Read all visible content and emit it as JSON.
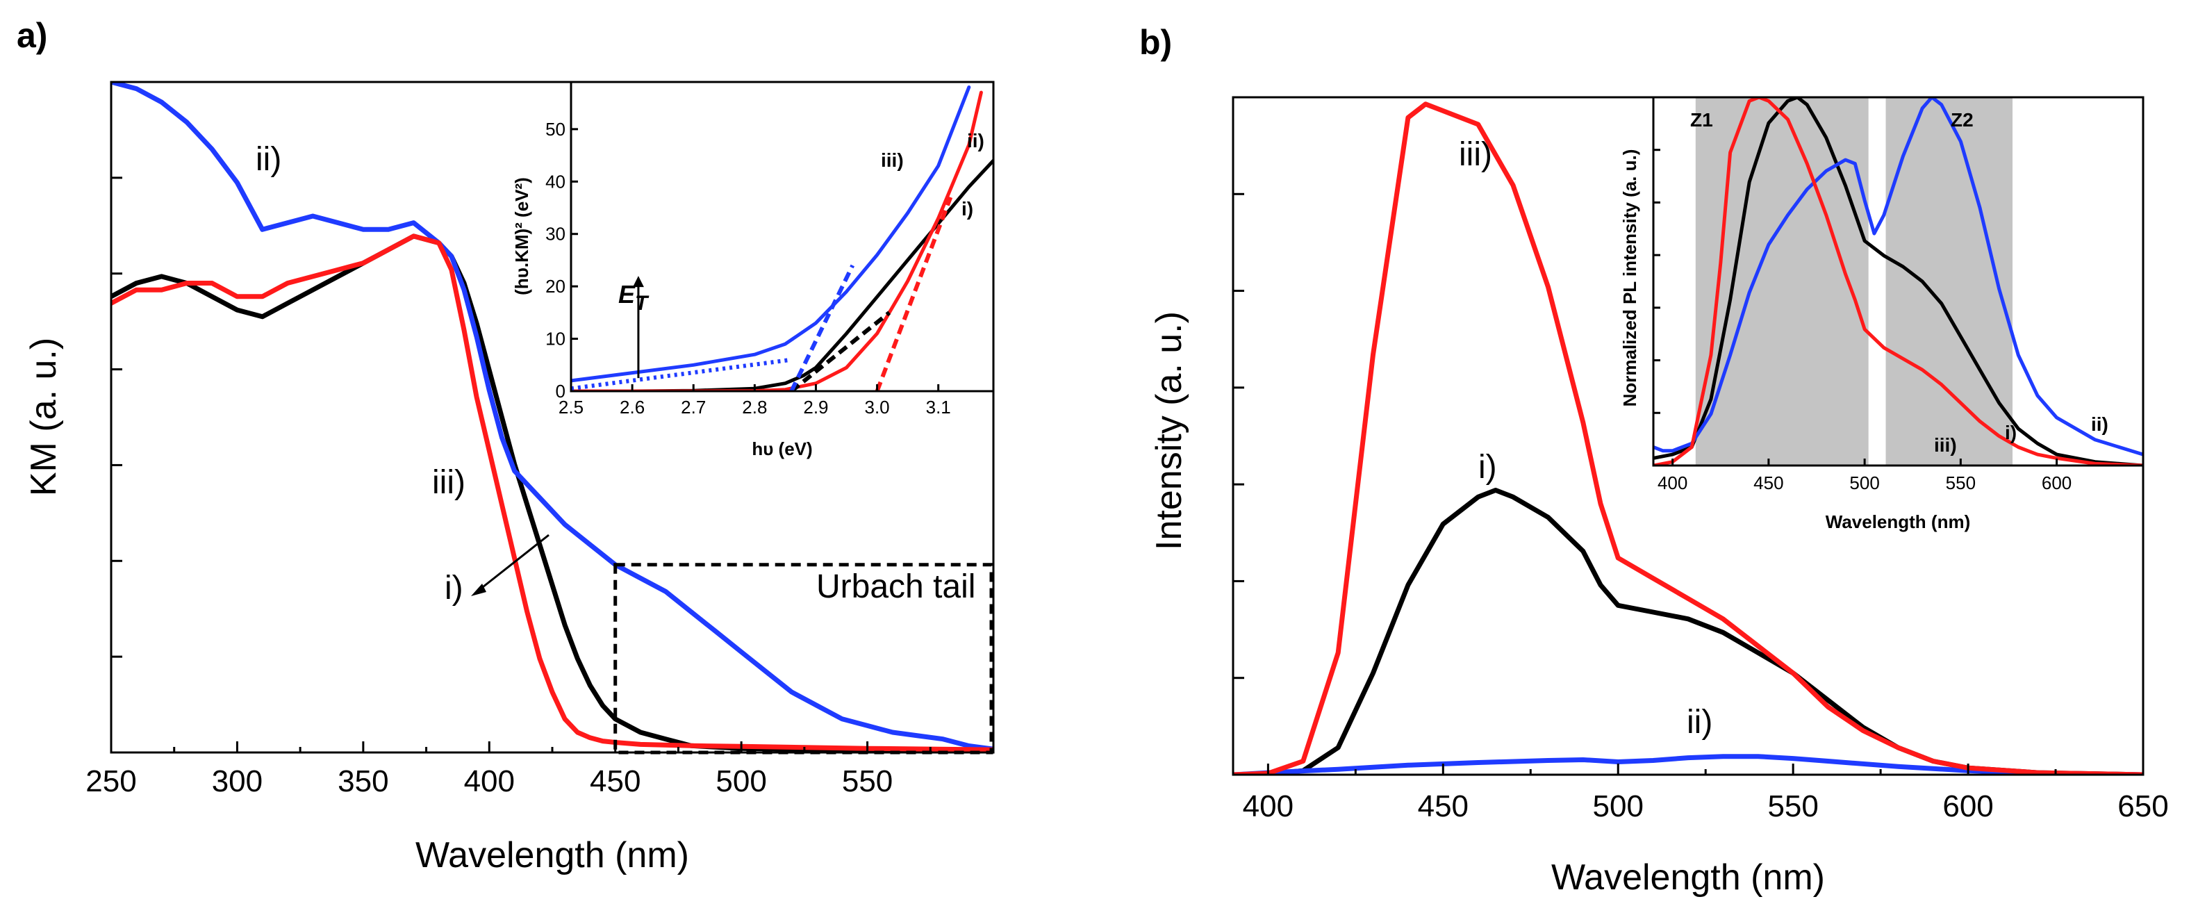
{
  "figure": {
    "panel_a_label": "a)",
    "panel_b_label": "b)",
    "colors": {
      "i": "#000000",
      "ii": "#1f3bff",
      "iii": "#ff1a1a",
      "shade": "#c4c4c4"
    }
  },
  "chart_data": [
    {
      "id": "panel-a-main",
      "type": "line",
      "title": "",
      "xlabel": "Wavelength (nm)",
      "ylabel": "KM (a. u.)",
      "xlim": [
        250,
        600
      ],
      "ylim": [
        0,
        1.0
      ],
      "x_ticks": [
        250,
        300,
        350,
        400,
        450,
        500,
        550
      ],
      "y_tick_labels": "none",
      "series": [
        {
          "name": "i)",
          "color": "#000000",
          "x": [
            250,
            260,
            270,
            280,
            290,
            300,
            310,
            320,
            330,
            340,
            350,
            360,
            370,
            380,
            385,
            390,
            395,
            400,
            405,
            410,
            415,
            420,
            425,
            430,
            435,
            440,
            445,
            450,
            460,
            470,
            480,
            490,
            500,
            550,
            600
          ],
          "y": [
            0.68,
            0.7,
            0.71,
            0.7,
            0.68,
            0.66,
            0.65,
            0.67,
            0.69,
            0.71,
            0.73,
            0.75,
            0.77,
            0.76,
            0.74,
            0.7,
            0.64,
            0.57,
            0.5,
            0.43,
            0.37,
            0.31,
            0.25,
            0.19,
            0.14,
            0.1,
            0.07,
            0.05,
            0.03,
            0.02,
            0.01,
            0.008,
            0.006,
            0.003,
            0.002
          ]
        },
        {
          "name": "ii)",
          "color": "#1f3bff",
          "x": [
            250,
            260,
            270,
            280,
            290,
            300,
            310,
            320,
            330,
            340,
            350,
            360,
            370,
            380,
            385,
            390,
            395,
            400,
            405,
            410,
            420,
            430,
            440,
            450,
            460,
            470,
            480,
            490,
            500,
            510,
            520,
            530,
            540,
            550,
            560,
            570,
            580,
            590,
            600
          ],
          "y": [
            1.0,
            0.99,
            0.97,
            0.94,
            0.9,
            0.85,
            0.78,
            0.79,
            0.8,
            0.79,
            0.78,
            0.78,
            0.79,
            0.76,
            0.74,
            0.69,
            0.62,
            0.54,
            0.47,
            0.42,
            0.38,
            0.34,
            0.31,
            0.28,
            0.26,
            0.24,
            0.21,
            0.18,
            0.15,
            0.12,
            0.09,
            0.07,
            0.05,
            0.04,
            0.03,
            0.025,
            0.02,
            0.01,
            0.005
          ]
        },
        {
          "name": "iii)",
          "color": "#ff1a1a",
          "x": [
            250,
            260,
            270,
            280,
            290,
            300,
            310,
            320,
            330,
            340,
            350,
            360,
            370,
            380,
            385,
            390,
            395,
            400,
            405,
            410,
            415,
            420,
            425,
            430,
            435,
            440,
            445,
            450,
            460,
            480,
            500,
            550,
            600
          ],
          "y": [
            0.67,
            0.69,
            0.69,
            0.7,
            0.7,
            0.68,
            0.68,
            0.7,
            0.71,
            0.72,
            0.73,
            0.75,
            0.77,
            0.76,
            0.72,
            0.63,
            0.53,
            0.45,
            0.37,
            0.29,
            0.21,
            0.14,
            0.09,
            0.05,
            0.03,
            0.022,
            0.017,
            0.015,
            0.012,
            0.01,
            0.009,
            0.006,
            0.004
          ]
        }
      ],
      "curve_labels": {
        "i": "i)",
        "ii": "ii)",
        "iii": "iii)"
      },
      "annotations": {
        "urbach": "Urbach tail",
        "urbach_box_x": [
          450,
          600
        ],
        "urbach_box_y": [
          0,
          0.28
        ]
      }
    },
    {
      "id": "panel-a-inset",
      "type": "line",
      "title": "",
      "xlabel": "hυ (eV)",
      "ylabel": "(hυ.KM)² (eV²)",
      "xlim": [
        2.5,
        3.19
      ],
      "ylim": [
        0,
        59
      ],
      "x_ticks": [
        2.5,
        2.6,
        2.7,
        2.8,
        2.9,
        3.0,
        3.1
      ],
      "y_ticks": [
        0,
        10,
        20,
        30,
        40,
        50
      ],
      "series": [
        {
          "name": "i)",
          "color": "#000000",
          "x": [
            2.5,
            2.6,
            2.7,
            2.8,
            2.85,
            2.88,
            2.9,
            2.95,
            3.0,
            3.05,
            3.1,
            3.15,
            3.19
          ],
          "y": [
            0,
            0,
            0.1,
            0.5,
            1.5,
            3.0,
            4.5,
            11,
            18,
            25,
            32,
            39,
            44
          ]
        },
        {
          "name": "ii)",
          "color": "#1f3bff",
          "x": [
            2.5,
            2.6,
            2.7,
            2.8,
            2.85,
            2.9,
            2.95,
            3.0,
            3.05,
            3.1,
            3.15
          ],
          "y": [
            2,
            3.5,
            5,
            7,
            9,
            13,
            19,
            26,
            34,
            43,
            58
          ]
        },
        {
          "name": "iii)",
          "color": "#ff1a1a",
          "x": [
            2.5,
            2.7,
            2.8,
            2.85,
            2.9,
            2.95,
            3.0,
            3.05,
            3.1,
            3.15,
            3.17
          ],
          "y": [
            0,
            0,
            0.05,
            0.3,
            1.5,
            4.5,
            11,
            21,
            33,
            47,
            57
          ]
        }
      ],
      "fit_lines": [
        {
          "name": "i)",
          "color": "#000000",
          "x": [
            2.86,
            3.02
          ],
          "y": [
            0,
            15
          ]
        },
        {
          "name": "ii)",
          "color": "#1f3bff",
          "x": [
            2.86,
            2.96
          ],
          "y": [
            0,
            24
          ]
        },
        {
          "name": "ii) tail",
          "color": "#1f3bff",
          "x": [
            2.5,
            2.86
          ],
          "y": [
            0.5,
            6
          ]
        },
        {
          "name": "iii)",
          "color": "#ff1a1a",
          "x": [
            3.0,
            3.12
          ],
          "y": [
            0,
            37
          ]
        }
      ],
      "curve_labels": {
        "i": "i)",
        "ii": "ii)",
        "iii": "iii)"
      },
      "annotations": {
        "arrow_label": "E",
        "arrow_label_sub": "T",
        "arrow_x": 2.61
      }
    },
    {
      "id": "panel-b-main",
      "type": "line",
      "title": "",
      "xlabel": "Wavelength (nm)",
      "ylabel": "Intensity (a. u.)",
      "xlim": [
        390,
        650
      ],
      "ylim": [
        0,
        1.0
      ],
      "x_ticks": [
        400,
        450,
        500,
        550,
        600,
        650
      ],
      "y_tick_labels": "none",
      "series": [
        {
          "name": "i)",
          "color": "#000000",
          "x": [
            390,
            400,
            410,
            420,
            430,
            440,
            450,
            460,
            465,
            470,
            480,
            490,
            495,
            500,
            510,
            520,
            530,
            540,
            550,
            560,
            570,
            580,
            590,
            600,
            620,
            640,
            650
          ],
          "y": [
            0,
            0.001,
            0.006,
            0.04,
            0.15,
            0.28,
            0.37,
            0.41,
            0.42,
            0.41,
            0.38,
            0.33,
            0.28,
            0.25,
            0.24,
            0.23,
            0.21,
            0.18,
            0.15,
            0.11,
            0.07,
            0.04,
            0.02,
            0.01,
            0.003,
            0.001,
            0
          ]
        },
        {
          "name": "ii)",
          "color": "#1f3bff",
          "x": [
            390,
            400,
            420,
            440,
            460,
            480,
            490,
            500,
            510,
            520,
            530,
            540,
            550,
            560,
            580,
            600,
            620,
            650
          ],
          "y": [
            0.0,
            0.003,
            0.008,
            0.014,
            0.018,
            0.021,
            0.022,
            0.019,
            0.021,
            0.025,
            0.027,
            0.027,
            0.024,
            0.02,
            0.012,
            0.006,
            0.002,
            0
          ]
        },
        {
          "name": "iii)",
          "color": "#ff1a1a",
          "x": [
            390,
            400,
            410,
            420,
            430,
            440,
            445,
            450,
            460,
            470,
            480,
            490,
            495,
            500,
            510,
            520,
            530,
            540,
            550,
            560,
            570,
            580,
            590,
            600,
            620,
            640,
            650
          ],
          "y": [
            0,
            0.002,
            0.02,
            0.18,
            0.62,
            0.97,
            0.99,
            0.98,
            0.96,
            0.87,
            0.72,
            0.52,
            0.4,
            0.32,
            0.29,
            0.26,
            0.23,
            0.19,
            0.15,
            0.1,
            0.065,
            0.04,
            0.02,
            0.01,
            0.003,
            0.001,
            0
          ]
        }
      ],
      "curve_labels": {
        "i": "i)",
        "ii": "ii)",
        "iii": "iii)"
      }
    },
    {
      "id": "panel-b-inset",
      "type": "line",
      "title": "",
      "xlabel": "Wavelength (nm)",
      "ylabel": "Normalized PL intensity (a. u.)",
      "xlim": [
        390,
        645
      ],
      "ylim": [
        0,
        1.0
      ],
      "x_ticks": [
        400,
        450,
        500,
        550,
        600
      ],
      "y_tick_labels": "none",
      "zones": [
        {
          "label": "Z1",
          "x": [
            412,
            502
          ]
        },
        {
          "label": "Z2",
          "x": [
            511,
            577
          ]
        }
      ],
      "series": [
        {
          "name": "i)",
          "color": "#000000",
          "x": [
            390,
            400,
            410,
            420,
            430,
            440,
            450,
            460,
            465,
            470,
            480,
            490,
            500,
            510,
            520,
            530,
            540,
            550,
            560,
            570,
            580,
            590,
            600,
            620,
            645
          ],
          "y": [
            0.02,
            0.03,
            0.05,
            0.18,
            0.45,
            0.77,
            0.93,
            0.99,
            1.0,
            0.98,
            0.89,
            0.76,
            0.61,
            0.57,
            0.54,
            0.5,
            0.44,
            0.35,
            0.26,
            0.17,
            0.1,
            0.06,
            0.03,
            0.01,
            0
          ]
        },
        {
          "name": "ii)",
          "color": "#1f3bff",
          "x": [
            390,
            395,
            400,
            410,
            420,
            430,
            440,
            450,
            460,
            470,
            480,
            490,
            495,
            500,
            505,
            510,
            520,
            530,
            535,
            540,
            550,
            560,
            570,
            580,
            590,
            600,
            620,
            645
          ],
          "y": [
            0.05,
            0.04,
            0.04,
            0.06,
            0.14,
            0.3,
            0.47,
            0.6,
            0.68,
            0.75,
            0.8,
            0.83,
            0.82,
            0.72,
            0.63,
            0.68,
            0.84,
            0.97,
            1.0,
            0.98,
            0.88,
            0.7,
            0.48,
            0.3,
            0.19,
            0.13,
            0.07,
            0.03
          ]
        },
        {
          "name": "iii)",
          "color": "#ff1a1a",
          "x": [
            390,
            400,
            410,
            420,
            425,
            430,
            440,
            445,
            450,
            460,
            470,
            480,
            490,
            495,
            500,
            510,
            520,
            530,
            540,
            550,
            560,
            570,
            580,
            590,
            600,
            620,
            645
          ],
          "y": [
            0,
            0.01,
            0.05,
            0.3,
            0.55,
            0.85,
            0.99,
            1.0,
            0.99,
            0.94,
            0.82,
            0.68,
            0.52,
            0.45,
            0.37,
            0.32,
            0.29,
            0.26,
            0.22,
            0.17,
            0.12,
            0.08,
            0.05,
            0.03,
            0.02,
            0.005,
            0
          ]
        }
      ],
      "curve_labels": {
        "i": "i)",
        "ii": "ii)",
        "iii": "iii)"
      }
    }
  ]
}
